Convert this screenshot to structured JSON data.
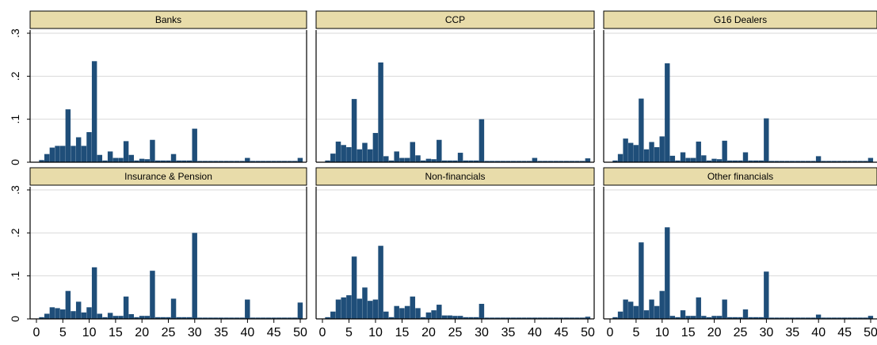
{
  "colors": {
    "bar": "#1f4e79",
    "strip": "#e8dcaa",
    "strip_border": "#000000",
    "grid": "#d9d9d9",
    "axis": "#000000",
    "text": "#000000"
  },
  "y_tick_labels": [
    "0",
    ".1",
    ".2",
    ".3"
  ],
  "x_tick_labels": [
    "0",
    "5",
    "10",
    "15",
    "20",
    "25",
    "30",
    "35",
    "40",
    "45",
    "50"
  ],
  "chart_data": [
    {
      "type": "bar",
      "title": "Banks",
      "x": [
        1,
        2,
        3,
        4,
        5,
        6,
        7,
        8,
        9,
        10,
        11,
        12,
        13,
        14,
        15,
        16,
        17,
        18,
        19,
        20,
        21,
        22,
        23,
        24,
        25,
        26,
        27,
        28,
        29,
        30,
        31,
        32,
        33,
        34,
        35,
        36,
        37,
        38,
        39,
        40,
        41,
        42,
        43,
        44,
        45,
        46,
        47,
        48,
        49,
        50
      ],
      "values": [
        0.005,
        0.019,
        0.034,
        0.038,
        0.038,
        0.123,
        0.038,
        0.058,
        0.038,
        0.07,
        0.235,
        0.017,
        0.004,
        0.025,
        0.01,
        0.01,
        0.049,
        0.017,
        0.004,
        0.008,
        0.007,
        0.052,
        0.004,
        0.004,
        0.004,
        0.019,
        0.004,
        0.004,
        0.004,
        0.078,
        0.003,
        0.003,
        0.003,
        0.003,
        0.003,
        0.003,
        0.003,
        0.003,
        0.003,
        0.01,
        0.003,
        0.003,
        0.003,
        0.003,
        0.003,
        0.003,
        0.003,
        0.003,
        0.003,
        0.01
      ],
      "xlim": [
        0,
        50
      ],
      "ylim": [
        0,
        0.3
      ]
    },
    {
      "type": "bar",
      "title": "CCP",
      "x": [
        1,
        2,
        3,
        4,
        5,
        6,
        7,
        8,
        9,
        10,
        11,
        12,
        13,
        14,
        15,
        16,
        17,
        18,
        19,
        20,
        21,
        22,
        23,
        24,
        25,
        26,
        27,
        28,
        29,
        30,
        31,
        32,
        33,
        34,
        35,
        36,
        37,
        38,
        39,
        40,
        41,
        42,
        43,
        44,
        45,
        46,
        47,
        48,
        49,
        50
      ],
      "values": [
        0.004,
        0.02,
        0.048,
        0.04,
        0.035,
        0.147,
        0.03,
        0.045,
        0.03,
        0.068,
        0.232,
        0.014,
        0.004,
        0.025,
        0.01,
        0.01,
        0.047,
        0.016,
        0.004,
        0.008,
        0.007,
        0.052,
        0.004,
        0.004,
        0.004,
        0.022,
        0.004,
        0.004,
        0.004,
        0.1,
        0.003,
        0.003,
        0.003,
        0.003,
        0.003,
        0.003,
        0.003,
        0.003,
        0.003,
        0.01,
        0.003,
        0.003,
        0.003,
        0.003,
        0.003,
        0.003,
        0.003,
        0.003,
        0.003,
        0.009
      ],
      "xlim": [
        0,
        50
      ],
      "ylim": [
        0,
        0.3
      ]
    },
    {
      "type": "bar",
      "title": "G16 Dealers",
      "x": [
        1,
        2,
        3,
        4,
        5,
        6,
        7,
        8,
        9,
        10,
        11,
        12,
        13,
        14,
        15,
        16,
        17,
        18,
        19,
        20,
        21,
        22,
        23,
        24,
        25,
        26,
        27,
        28,
        29,
        30,
        31,
        32,
        33,
        34,
        35,
        36,
        37,
        38,
        39,
        40,
        41,
        42,
        43,
        44,
        45,
        46,
        47,
        48,
        49,
        50
      ],
      "values": [
        0.004,
        0.019,
        0.055,
        0.045,
        0.04,
        0.148,
        0.03,
        0.047,
        0.035,
        0.06,
        0.23,
        0.015,
        0.004,
        0.023,
        0.01,
        0.01,
        0.048,
        0.016,
        0.004,
        0.008,
        0.007,
        0.05,
        0.004,
        0.004,
        0.004,
        0.023,
        0.004,
        0.004,
        0.004,
        0.102,
        0.003,
        0.003,
        0.003,
        0.003,
        0.003,
        0.003,
        0.003,
        0.003,
        0.003,
        0.014,
        0.003,
        0.003,
        0.003,
        0.003,
        0.003,
        0.003,
        0.003,
        0.003,
        0.003,
        0.01
      ],
      "xlim": [
        0,
        50
      ],
      "ylim": [
        0,
        0.3
      ]
    },
    {
      "type": "bar",
      "title": "Insurance & Pension",
      "x": [
        1,
        2,
        3,
        4,
        5,
        6,
        7,
        8,
        9,
        10,
        11,
        12,
        13,
        14,
        15,
        16,
        17,
        18,
        19,
        20,
        21,
        22,
        23,
        24,
        25,
        26,
        27,
        28,
        29,
        30,
        31,
        32,
        33,
        34,
        35,
        36,
        37,
        38,
        39,
        40,
        41,
        42,
        43,
        44,
        45,
        46,
        47,
        48,
        49,
        50
      ],
      "values": [
        0.004,
        0.012,
        0.027,
        0.025,
        0.022,
        0.065,
        0.018,
        0.04,
        0.015,
        0.027,
        0.12,
        0.012,
        0.004,
        0.014,
        0.007,
        0.007,
        0.052,
        0.011,
        0.004,
        0.007,
        0.007,
        0.112,
        0.004,
        0.004,
        0.004,
        0.047,
        0.004,
        0.004,
        0.004,
        0.2,
        0.003,
        0.003,
        0.003,
        0.003,
        0.003,
        0.003,
        0.003,
        0.003,
        0.003,
        0.045,
        0.003,
        0.003,
        0.003,
        0.003,
        0.003,
        0.003,
        0.003,
        0.003,
        0.003,
        0.038
      ],
      "xlim": [
        0,
        50
      ],
      "ylim": [
        0,
        0.3
      ]
    },
    {
      "type": "bar",
      "title": "Non-financials",
      "x": [
        1,
        2,
        3,
        4,
        5,
        6,
        7,
        8,
        9,
        10,
        11,
        12,
        13,
        14,
        15,
        16,
        17,
        18,
        19,
        20,
        21,
        22,
        23,
        24,
        25,
        26,
        27,
        28,
        29,
        30,
        31,
        32,
        33,
        34,
        35,
        36,
        37,
        38,
        39,
        40,
        41,
        42,
        43,
        44,
        45,
        46,
        47,
        48,
        49,
        50
      ],
      "values": [
        0.004,
        0.017,
        0.045,
        0.05,
        0.055,
        0.145,
        0.047,
        0.073,
        0.042,
        0.045,
        0.17,
        0.017,
        0.004,
        0.03,
        0.025,
        0.03,
        0.052,
        0.025,
        0.004,
        0.015,
        0.02,
        0.033,
        0.008,
        0.008,
        0.007,
        0.007,
        0.004,
        0.004,
        0.004,
        0.035,
        0.003,
        0.003,
        0.003,
        0.003,
        0.003,
        0.003,
        0.003,
        0.003,
        0.003,
        0.003,
        0.003,
        0.003,
        0.003,
        0.003,
        0.003,
        0.003,
        0.003,
        0.003,
        0.003,
        0.005
      ],
      "xlim": [
        0,
        50
      ],
      "ylim": [
        0,
        0.3
      ]
    },
    {
      "type": "bar",
      "title": "Other financials",
      "x": [
        1,
        2,
        3,
        4,
        5,
        6,
        7,
        8,
        9,
        10,
        11,
        12,
        13,
        14,
        15,
        16,
        17,
        18,
        19,
        20,
        21,
        22,
        23,
        24,
        25,
        26,
        27,
        28,
        29,
        30,
        31,
        32,
        33,
        34,
        35,
        36,
        37,
        38,
        39,
        40,
        41,
        42,
        43,
        44,
        45,
        46,
        47,
        48,
        49,
        50
      ],
      "values": [
        0.004,
        0.017,
        0.045,
        0.04,
        0.03,
        0.178,
        0.02,
        0.045,
        0.03,
        0.065,
        0.213,
        0.007,
        0.004,
        0.02,
        0.007,
        0.007,
        0.05,
        0.007,
        0.004,
        0.007,
        0.007,
        0.045,
        0.004,
        0.004,
        0.004,
        0.022,
        0.004,
        0.004,
        0.004,
        0.11,
        0.003,
        0.003,
        0.003,
        0.003,
        0.003,
        0.003,
        0.003,
        0.003,
        0.003,
        0.01,
        0.003,
        0.003,
        0.003,
        0.003,
        0.003,
        0.003,
        0.003,
        0.003,
        0.003,
        0.007
      ],
      "xlim": [
        0,
        50
      ],
      "ylim": [
        0,
        0.3
      ]
    }
  ]
}
